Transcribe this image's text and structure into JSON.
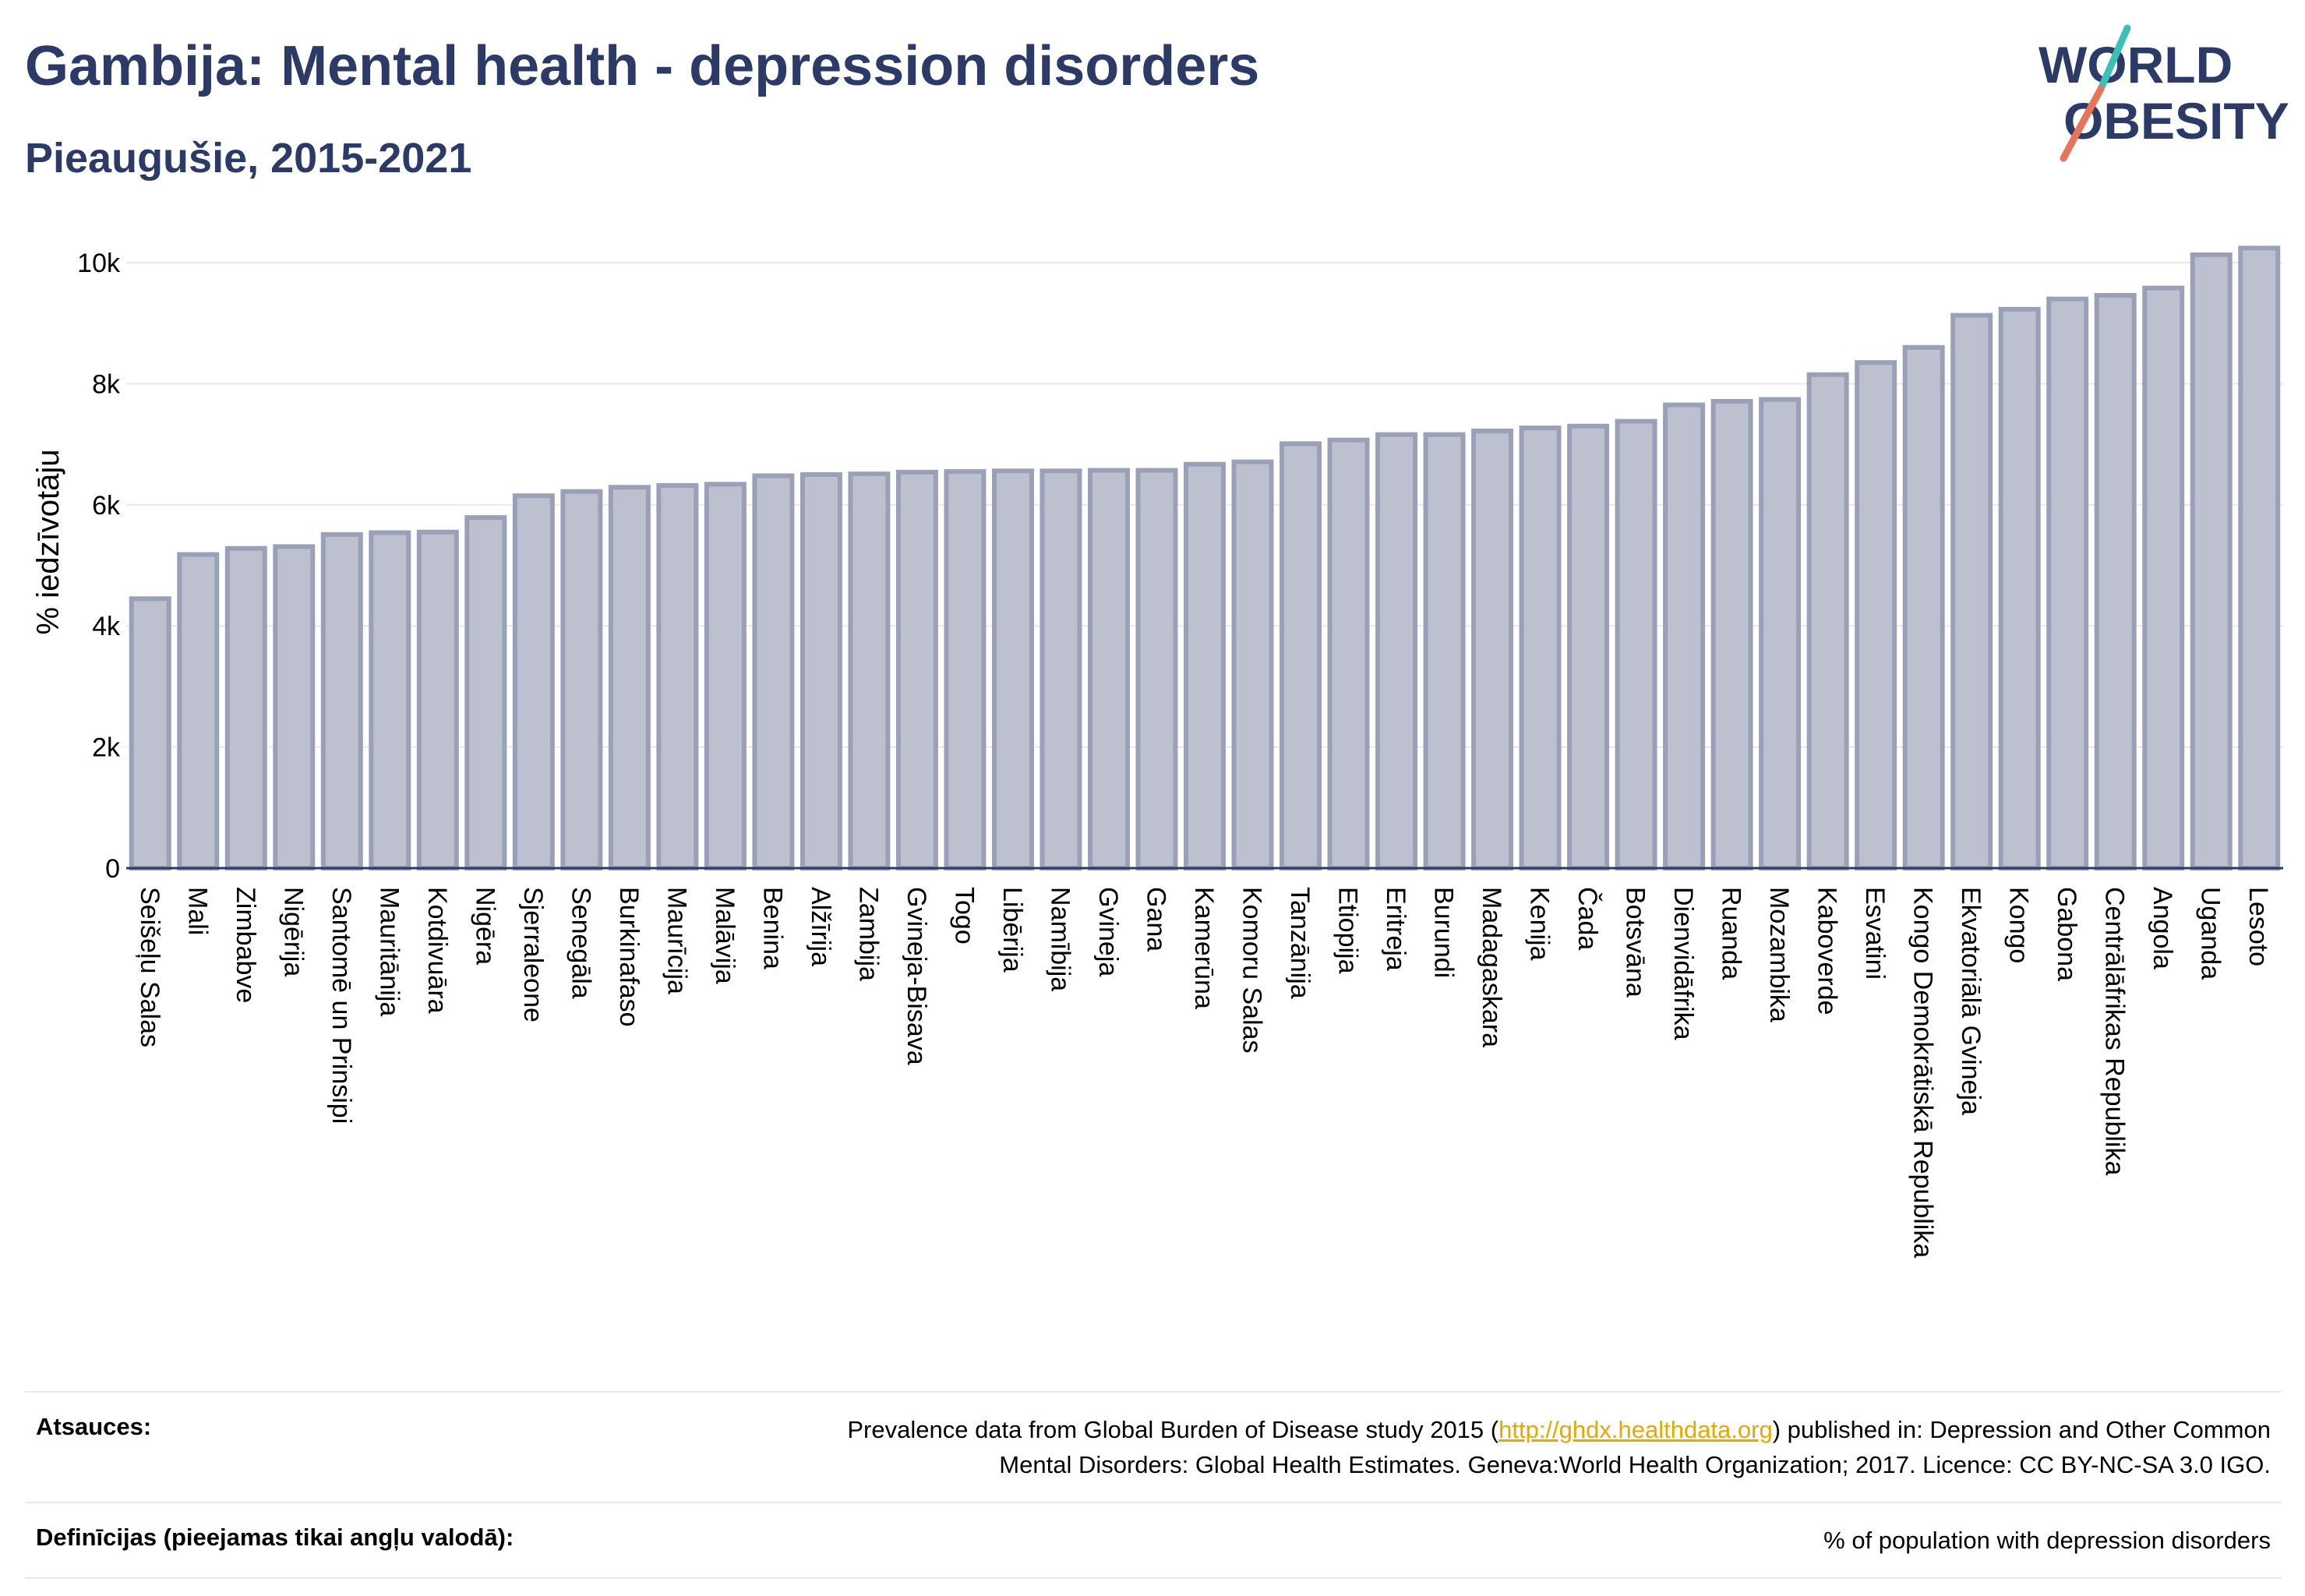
{
  "header": {
    "title": "Gambija: Mental health - depression disorders",
    "subtitle": "Pieaugušie, 2015-2021"
  },
  "logo": {
    "line1": "WORLD",
    "line2": "OBESITY"
  },
  "colors": {
    "bar_fill": "#bcc0cf",
    "bar_stroke": "#9aa0b8",
    "title": "#2b3a67",
    "grid": "#e6e8ef",
    "link": "#e7a800",
    "logo_teal": "#3cbfb7",
    "logo_coral": "#e8735a"
  },
  "chart_data": {
    "type": "bar",
    "ylabel": "% iedzīvotāju",
    "ylim": [
      0,
      10500
    ],
    "yticks": [
      0,
      2000,
      4000,
      6000,
      8000,
      10000
    ],
    "ytick_labels": [
      "0",
      "2k",
      "4k",
      "6k",
      "8k",
      "10k"
    ],
    "grid": true,
    "categories": [
      "Seišeļu Salas",
      "Mali",
      "Zimbabve",
      "Nigērija",
      "Santomē un Prinsipi",
      "Mauritānija",
      "Kotdivuāra",
      "Nigēra",
      "Sjerraleone",
      "Senegāla",
      "Burkinafaso",
      "Maurīcija",
      "Malāvija",
      "Benina",
      "Alžīrija",
      "Zambija",
      "Gvineja-Bisava",
      "Togo",
      "Libērija",
      "Namībija",
      "Gvineja",
      "Gana",
      "Kamerūna",
      "Komoru Salas",
      "Tanzānija",
      "Etiopija",
      "Eritreja",
      "Burundi",
      "Madagaskara",
      "Kenija",
      "Čada",
      "Botsvāna",
      "Dienvidāfrika",
      "Ruanda",
      "Mozambika",
      "Kaboverde",
      "Esvatini",
      "Kongo Demokrātiskā Republika",
      "Ekvatoriālā Gvineja",
      "Kongo",
      "Gabona",
      "Centrālāfrikas Republika",
      "Angola",
      "Uganda",
      "Lesoto"
    ],
    "values": [
      4450,
      5180,
      5280,
      5310,
      5510,
      5540,
      5550,
      5790,
      6150,
      6220,
      6290,
      6320,
      6340,
      6480,
      6500,
      6510,
      6540,
      6550,
      6560,
      6560,
      6570,
      6570,
      6670,
      6710,
      7010,
      7070,
      7160,
      7160,
      7220,
      7270,
      7300,
      7380,
      7650,
      7710,
      7740,
      8150,
      8350,
      8600,
      9130,
      9230,
      9400,
      9460,
      9580,
      10130,
      10240
    ]
  },
  "footer": {
    "sources_label": "Atsauces:",
    "sources_text_before": "Prevalence data from Global Burden of Disease study 2015 (",
    "sources_link": "http://ghdx.healthdata.org",
    "sources_text_after": ") published in: Depression and Other Common",
    "sources_text_line2": "Mental Disorders: Global Health Estimates. Geneva:World Health Organization; 2017. Licence: CC BY-NC-SA 3.0 IGO.",
    "definitions_label": "Definīcijas (pieejamas tikai angļu valodā):",
    "definitions_text": "% of population with depression disorders"
  }
}
